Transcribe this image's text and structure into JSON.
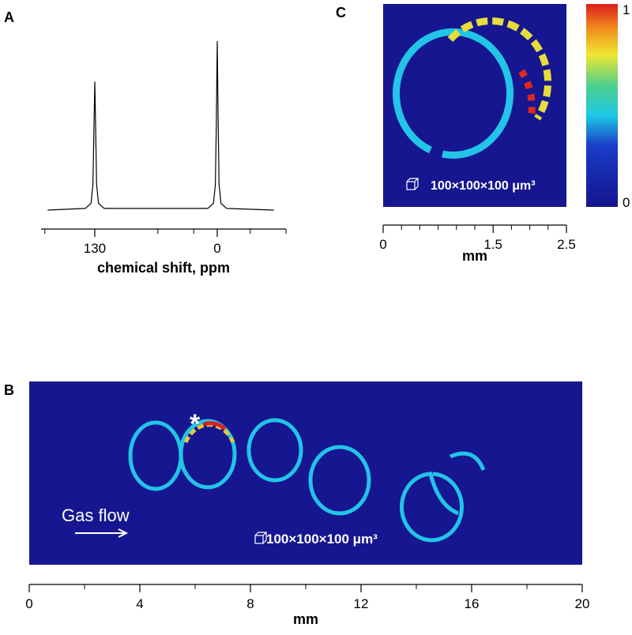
{
  "chart_data": [
    {
      "type": "line",
      "panel_label": "A",
      "xlabel": "chemical shift, ppm",
      "xlim": [
        187,
        -73
      ],
      "xticks": [
        130,
        0
      ],
      "xminorticks": [
        183,
        63,
        25,
        -35,
        -73
      ],
      "ylim": [
        0,
        1
      ],
      "x": [
        180,
        140,
        134,
        132,
        131,
        130,
        129,
        128,
        126,
        120,
        10,
        4,
        2,
        1,
        0,
        -1,
        -2,
        -4,
        -10,
        -60
      ],
      "values": [
        0,
        0.01,
        0.04,
        0.15,
        0.45,
        0.76,
        0.45,
        0.15,
        0.04,
        0.01,
        0.01,
        0.04,
        0.15,
        0.5,
        1.0,
        0.5,
        0.15,
        0.04,
        0.01,
        0
      ],
      "color": "#000000"
    },
    {
      "type": "image",
      "panel_label": "C",
      "xlabel": "mm",
      "xlim": [
        0,
        2.5
      ],
      "xticks": [
        0,
        1.5,
        2.5
      ],
      "xminorticks": [
        0.25,
        0.5,
        0.75,
        1,
        1.25,
        1.75,
        2,
        2.25
      ],
      "colorbar_ticks": [
        0,
        1
      ],
      "annotation": "100×100×100 μm³"
    },
    {
      "type": "image",
      "panel_label": "B",
      "xlabel": "mm",
      "xlim": [
        0,
        20
      ],
      "xticks": [
        0,
        4,
        8,
        12,
        16,
        20
      ],
      "xminorticks": [
        2,
        6,
        10,
        14,
        18
      ],
      "annotation": "100×100×100 μm³",
      "flow_label": "Gas flow",
      "marker": "*"
    }
  ]
}
